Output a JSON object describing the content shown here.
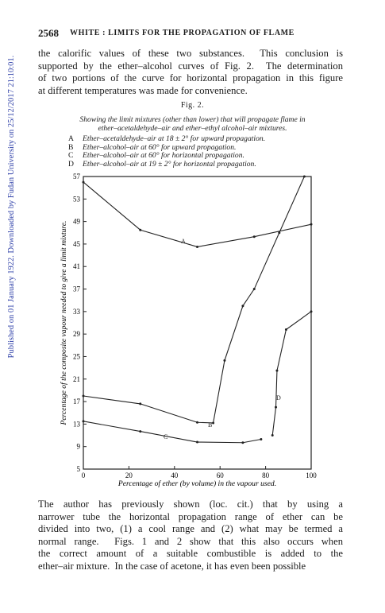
{
  "header": {
    "page_number": "2568",
    "running_title": "WHITE : LIMITS FOR THE PROPAGATION OF FLAME"
  },
  "paragraph_1": [
    "the calorific values of these two substances.  This conclusion is",
    "supported by the ether–alcohol curves of Fig. 2.  The determination",
    "of two portions of the curve for horizontal propagation in this figure",
    "at different temperatures was made for convenience."
  ],
  "figure": {
    "label": "Fig. 2.",
    "caption": [
      "Showing the limit mixtures (other than lower) that will propagate flame in",
      "ether–acetaldehyde–air and ether–ethyl alcohol–air mixtures."
    ],
    "key": [
      {
        "letter": "A",
        "text": "Ether–acetaldehyde–air at 18 ± 2° for upward propagation."
      },
      {
        "letter": "B",
        "text": "Ether–alcohol–air at 60° for upward propagation."
      },
      {
        "letter": "C",
        "text": "Ether–alcohol–air at 60° for horizontal propagation."
      },
      {
        "letter": "D",
        "text": "Ether–alcohol–air at 19 ± 2° for horizontal propagation."
      }
    ]
  },
  "chart_data": {
    "type": "line",
    "x_label": "Percentage of ether (by volume) in the vapour used.",
    "y_label": "Percentage of the composite vapour needed to give a limit mixture.",
    "xlim": [
      0,
      100
    ],
    "xticks": [
      0,
      20,
      40,
      60,
      80,
      100
    ],
    "ylim": [
      5,
      57
    ],
    "yticks": [
      5,
      9,
      13,
      17,
      21,
      25,
      29,
      33,
      37,
      41,
      45,
      49,
      53,
      57
    ],
    "grid": false,
    "series": [
      {
        "name": "A",
        "color": "#222222",
        "x": [
          0,
          25,
          50,
          75,
          100
        ],
        "values": [
          56,
          47.5,
          44.5,
          46.3,
          48.5
        ]
      },
      {
        "name": "B",
        "color": "#222222",
        "x": [
          0,
          25,
          50,
          57,
          62,
          70,
          75,
          86,
          97
        ],
        "values": [
          18,
          16.6,
          13.3,
          13.2,
          24.3,
          34,
          37,
          47,
          57
        ]
      },
      {
        "name": "C",
        "color": "#222222",
        "x": [
          0,
          25,
          50,
          70,
          78
        ],
        "values": [
          13.5,
          11.7,
          9.8,
          9.7,
          10.3
        ]
      },
      {
        "name": "D",
        "color": "#222222",
        "x": [
          83,
          84.5,
          85,
          89,
          100
        ],
        "values": [
          11,
          16,
          22.5,
          29.8,
          33
        ]
      }
    ]
  },
  "paragraph_2": [
    "The author has previously shown (loc. cit.) that by using a",
    "narrower tube the horizontal propagation range of ether can be",
    "divided into two, (1) a cool range and (2) what may be termed a",
    "normal range.  Figs. 1 and 2 show that this also occurs when",
    "the correct amount of a suitable combustible is added to the",
    "ether–air mixture.  In the case of acetone, it has even been possible"
  ],
  "watermark": "Published on 01 January 1922. Downloaded by Fudan University on 25/12/2017 21:10:01."
}
